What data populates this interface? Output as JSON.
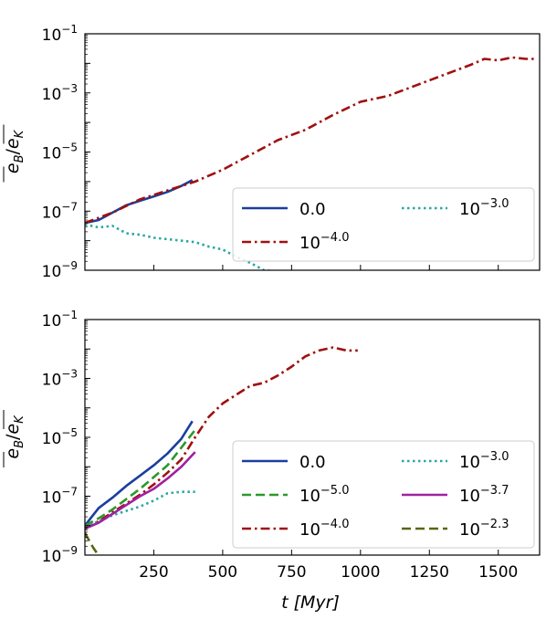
{
  "chart_data": [
    {
      "type": "line",
      "panel": "top",
      "ylabel": "e_B/e_K",
      "xlabel": "",
      "xlim": [
        0,
        1650
      ],
      "ylim_log10": [
        -9,
        -1
      ],
      "yscale": "log",
      "x_ticks": [
        250,
        500,
        750,
        1000,
        1250,
        1500
      ],
      "x_tick_labels_shown": false,
      "y_ticks": [
        {
          "value_log10": -1,
          "base": "10",
          "exp": "−1"
        },
        {
          "value_log10": -3,
          "base": "10",
          "exp": "−3"
        },
        {
          "value_log10": -5,
          "base": "10",
          "exp": "−5"
        },
        {
          "value_log10": -7,
          "base": "10",
          "exp": "−7"
        },
        {
          "value_log10": -9,
          "base": "10",
          "exp": "−9"
        }
      ],
      "legend": {
        "position": "lower-right",
        "columns": 2,
        "entries": [
          {
            "series": 0,
            "base": "0.0",
            "exp": ""
          },
          {
            "series": 1,
            "base": "10",
            "exp": "−4.0"
          },
          {
            "series": 2,
            "base": "10",
            "exp": "−3.0"
          }
        ]
      },
      "series": [
        {
          "color": "#1a3f9c",
          "dash": "solid",
          "x": [
            0,
            50,
            100,
            150,
            200,
            250,
            300,
            350,
            390
          ],
          "log10_y": [
            -7.4,
            -7.3,
            -7.05,
            -6.8,
            -6.65,
            -6.5,
            -6.35,
            -6.15,
            -5.95
          ]
        },
        {
          "color": "#a01010",
          "dash": "dashdot",
          "x": [
            0,
            100,
            200,
            300,
            400,
            500,
            600,
            700,
            800,
            900,
            1000,
            1100,
            1200,
            1300,
            1400,
            1450,
            1500,
            1550,
            1600,
            1640
          ],
          "log10_y": [
            -7.4,
            -7.05,
            -6.6,
            -6.3,
            -6.0,
            -5.6,
            -5.1,
            -4.6,
            -4.25,
            -3.75,
            -3.3,
            -3.1,
            -2.75,
            -2.4,
            -2.05,
            -1.85,
            -1.9,
            -1.8,
            -1.85,
            -1.85
          ]
        },
        {
          "color": "#2aa8a0",
          "dash": "dotted",
          "x": [
            0,
            50,
            100,
            150,
            200,
            250,
            300,
            400,
            450,
            500,
            550,
            600,
            650,
            700
          ],
          "log10_y": [
            -7.45,
            -7.55,
            -7.5,
            -7.75,
            -7.8,
            -7.9,
            -7.95,
            -8.05,
            -8.2,
            -8.3,
            -8.55,
            -8.75,
            -9.0,
            -9.05
          ]
        }
      ]
    },
    {
      "type": "line",
      "panel": "bottom",
      "ylabel": "e_B/e_K",
      "xlabel": "t [Myr]",
      "xlim": [
        0,
        1650
      ],
      "ylim_log10": [
        -9,
        -1
      ],
      "yscale": "log",
      "x_ticks": [
        250,
        500,
        750,
        1000,
        1250,
        1500
      ],
      "x_tick_labels": [
        "250",
        "500",
        "750",
        "1000",
        "1250",
        "1500"
      ],
      "y_ticks": [
        {
          "value_log10": -1,
          "base": "10",
          "exp": "−1"
        },
        {
          "value_log10": -3,
          "base": "10",
          "exp": "−3"
        },
        {
          "value_log10": -5,
          "base": "10",
          "exp": "−5"
        },
        {
          "value_log10": -7,
          "base": "10",
          "exp": "−7"
        },
        {
          "value_log10": -9,
          "base": "10",
          "exp": "−9"
        }
      ],
      "legend": {
        "position": "lower-right",
        "columns": 2,
        "entries": [
          {
            "series": 0,
            "base": "0.0",
            "exp": ""
          },
          {
            "series": 1,
            "base": "10",
            "exp": "−5.0"
          },
          {
            "series": 2,
            "base": "10",
            "exp": "−4.0"
          },
          {
            "series": 3,
            "base": "10",
            "exp": "−3.0"
          },
          {
            "series": 4,
            "base": "10",
            "exp": "−3.7"
          },
          {
            "series": 5,
            "base": "10",
            "exp": "−2.3"
          }
        ]
      },
      "series": [
        {
          "color": "#1a3f9c",
          "dash": "solid",
          "x": [
            0,
            25,
            50,
            100,
            150,
            200,
            250,
            300,
            350,
            390
          ],
          "log10_y": [
            -8.0,
            -7.7,
            -7.4,
            -7.05,
            -6.65,
            -6.3,
            -5.95,
            -5.55,
            -5.05,
            -4.45
          ]
        },
        {
          "color": "#2a9a2a",
          "dash": "dashed",
          "x": [
            0,
            50,
            100,
            150,
            200,
            250,
            300,
            350,
            400
          ],
          "log10_y": [
            -8.0,
            -7.75,
            -7.45,
            -7.1,
            -6.75,
            -6.35,
            -5.95,
            -5.35,
            -4.75
          ]
        },
        {
          "color": "#a01010",
          "dash": "dashdot",
          "x": [
            0,
            50,
            100,
            150,
            200,
            250,
            300,
            350,
            400,
            450,
            500,
            550,
            600,
            650,
            700,
            750,
            800,
            850,
            900,
            950,
            990
          ],
          "log10_y": [
            -8.1,
            -7.85,
            -7.55,
            -7.25,
            -6.95,
            -6.6,
            -6.2,
            -5.75,
            -5.0,
            -4.3,
            -3.85,
            -3.55,
            -3.25,
            -3.15,
            -2.9,
            -2.6,
            -2.25,
            -2.05,
            -1.95,
            -2.05,
            -2.05
          ]
        },
        {
          "color": "#2aa8a0",
          "dash": "dotted",
          "x": [
            0,
            50,
            100,
            150,
            200,
            250,
            300,
            350,
            400
          ],
          "log10_y": [
            -8.05,
            -7.85,
            -7.65,
            -7.5,
            -7.35,
            -7.15,
            -6.9,
            -6.85,
            -6.85
          ]
        },
        {
          "color": "#a020a0",
          "dash": "solid",
          "x": [
            0,
            50,
            100,
            150,
            200,
            250,
            300,
            350,
            400
          ],
          "log10_y": [
            -8.1,
            -7.9,
            -7.6,
            -7.3,
            -7.0,
            -6.75,
            -6.4,
            -6.0,
            -5.5
          ]
        },
        {
          "color": "#5a6410",
          "dash": "dashed",
          "x": [
            0,
            15,
            30,
            45,
            60
          ],
          "log10_y": [
            -8.25,
            -8.5,
            -8.75,
            -8.95,
            -9.05
          ]
        }
      ]
    }
  ]
}
